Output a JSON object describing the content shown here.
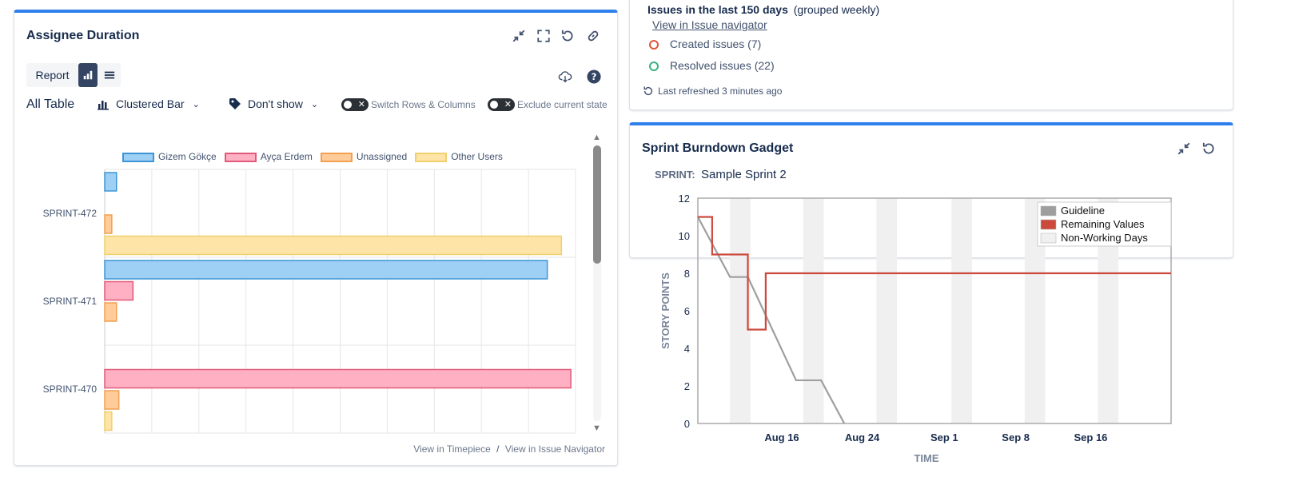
{
  "assignee_panel": {
    "title": "Assignee Duration",
    "report_label": "Report",
    "all_table_label": "All Table",
    "chart_type_label": "Clustered Bar",
    "dont_show_label": "Don't show",
    "switch_label": "Switch Rows & Columns",
    "exclude_label": "Exclude current state",
    "view_timepiece": "View in Timepiece",
    "separator": "/",
    "view_issue_nav": "View in Issue Navigator"
  },
  "issues_panel": {
    "title": "Issues in the last 150 days",
    "subtitle": "(grouped weekly)",
    "view_link": "View in Issue navigator",
    "created": "Created issues (7)",
    "resolved": "Resolved issues (22)",
    "refreshed": "Last refreshed 3 minutes ago",
    "colors": {
      "created": "#e2553b",
      "resolved": "#36b37e"
    }
  },
  "burndown_panel": {
    "title": "Sprint Burndown Gadget",
    "sprint_label": "SPRINT:",
    "sprint_name": "Sample Sprint 2"
  },
  "chart_data": [
    {
      "type": "bar",
      "orientation": "horizontal",
      "categories": [
        "SPRINT-472",
        "SPRINT-471",
        "SPRINT-470"
      ],
      "series": [
        {
          "name": "Gizem Gökçe",
          "color": "#9ecff5",
          "border": "#3d95d6",
          "values": [
            2.5,
            94,
            0
          ]
        },
        {
          "name": "Ayça Erdem",
          "color": "#ffb0c2",
          "border": "#e05a7a",
          "values": [
            0,
            6,
            99
          ]
        },
        {
          "name": "Unassigned",
          "color": "#ffcc99",
          "border": "#f0a050",
          "values": [
            1.5,
            2.5,
            3
          ]
        },
        {
          "name": "Other Users",
          "color": "#ffe4a8",
          "border": "#f0cf6c",
          "values": [
            97,
            0,
            1.5
          ]
        }
      ],
      "legend": "top",
      "grid": true
    },
    {
      "type": "line",
      "ylabel": "STORY POINTS",
      "xlabel": "TIME",
      "ylim": [
        0,
        12
      ],
      "yticks": [
        0,
        2,
        4,
        6,
        8,
        10,
        12
      ],
      "xticks": [
        "Aug 16",
        "Aug 24",
        "Sep 1",
        "Sep 8",
        "Sep 16"
      ],
      "legend": "top-right",
      "series": [
        {
          "name": "Guideline",
          "color": "#9e9e9e",
          "points": [
            [
              0,
              11
            ],
            [
              1.8,
              7.8
            ],
            [
              2.8,
              7.8
            ],
            [
              5.5,
              2.3
            ],
            [
              6.9,
              2.3
            ],
            [
              8.2,
              0
            ]
          ]
        },
        {
          "name": "Remaining Values",
          "color": "#cc4a3c",
          "points": [
            [
              0,
              11
            ],
            [
              0.8,
              11
            ],
            [
              0.8,
              9
            ],
            [
              2.8,
              9
            ],
            [
              2.8,
              5
            ],
            [
              3.8,
              5
            ],
            [
              3.8,
              8
            ],
            [
              26.5,
              8
            ]
          ]
        },
        {
          "name": "Non-Working Days",
          "color": "#f0f0f0"
        }
      ]
    }
  ]
}
